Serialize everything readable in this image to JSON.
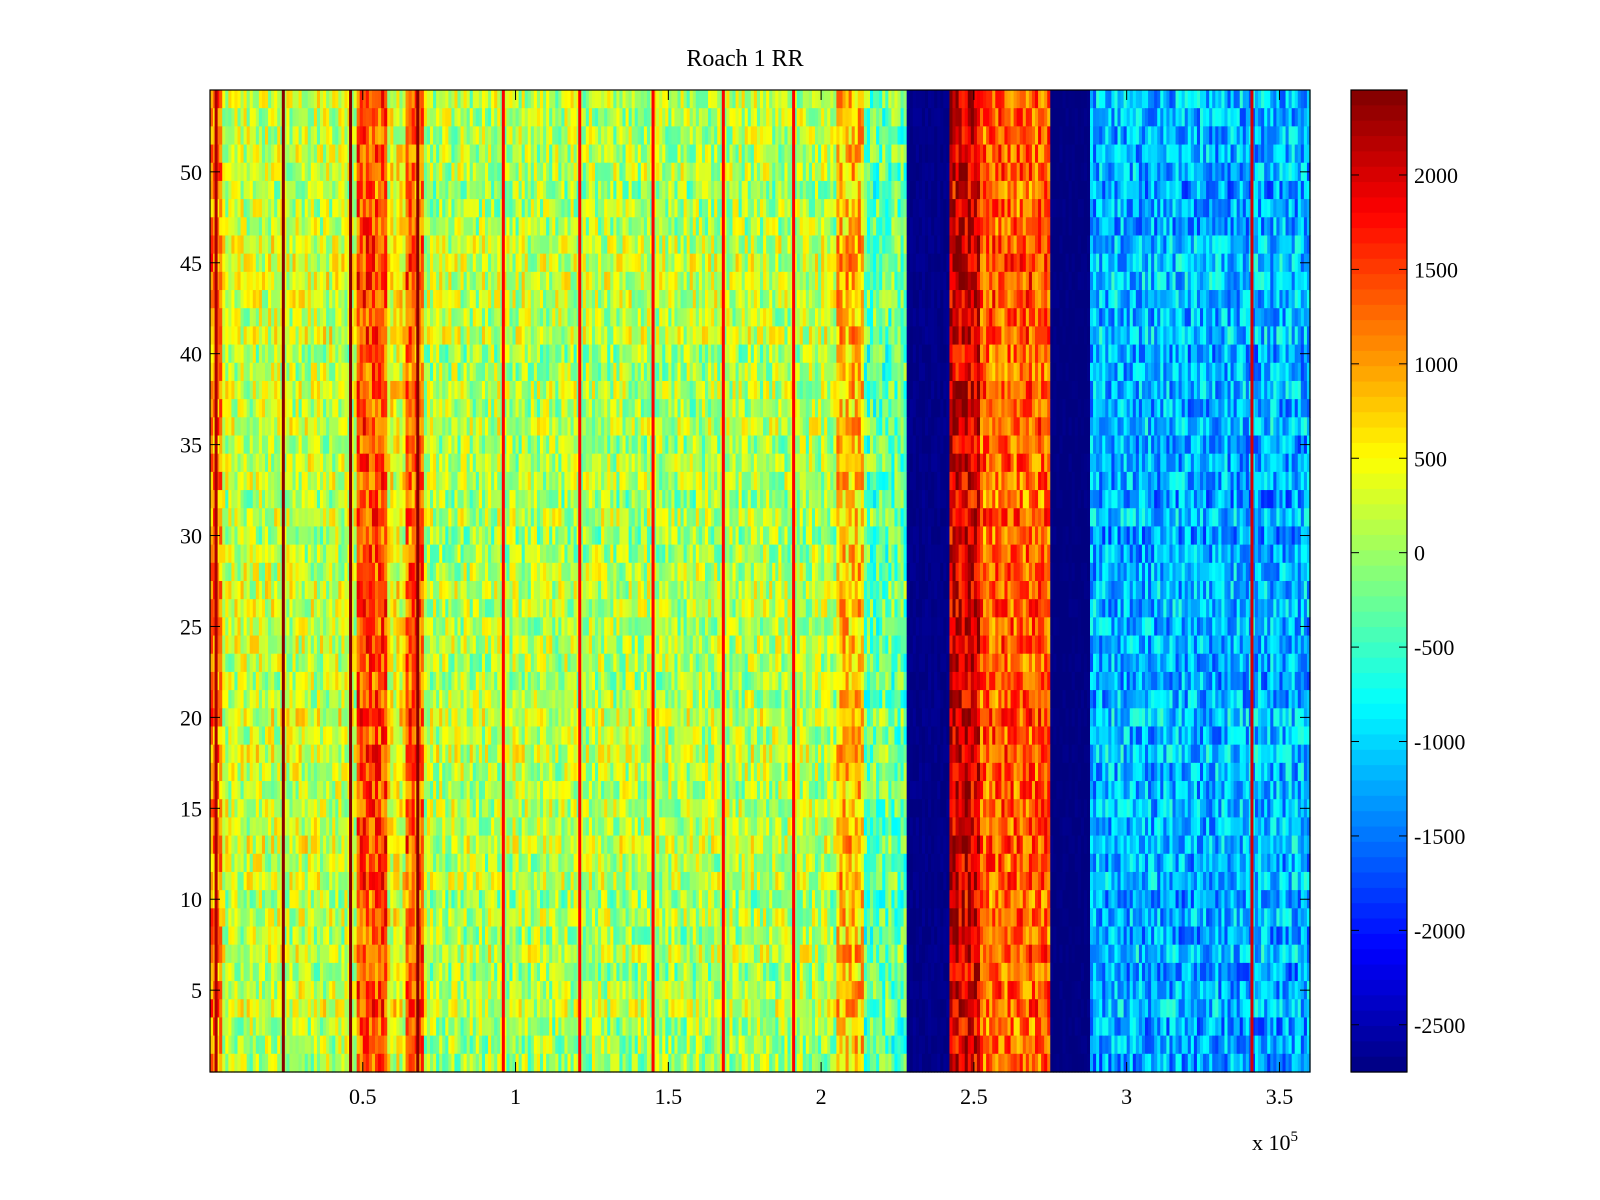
{
  "chart_data": {
    "type": "heatmap",
    "title": "Roach 1 RR",
    "xlabel": "",
    "ylabel": "",
    "xlim": [
      0,
      360000
    ],
    "ylim": [
      0.5,
      54.5
    ],
    "x_exponent_label": "x 10",
    "x_exponent_sup": "5",
    "x_ticks": [
      {
        "value": 50000,
        "label": "0.5"
      },
      {
        "value": 100000,
        "label": "1"
      },
      {
        "value": 150000,
        "label": "1.5"
      },
      {
        "value": 200000,
        "label": "2"
      },
      {
        "value": 250000,
        "label": "2.5"
      },
      {
        "value": 300000,
        "label": "3"
      },
      {
        "value": 350000,
        "label": "3.5"
      }
    ],
    "y_ticks": [
      {
        "value": 5,
        "label": "5"
      },
      {
        "value": 10,
        "label": "10"
      },
      {
        "value": 15,
        "label": "15"
      },
      {
        "value": 20,
        "label": "20"
      },
      {
        "value": 25,
        "label": "25"
      },
      {
        "value": 30,
        "label": "30"
      },
      {
        "value": 35,
        "label": "35"
      },
      {
        "value": 40,
        "label": "40"
      },
      {
        "value": 45,
        "label": "45"
      },
      {
        "value": 50,
        "label": "50"
      }
    ],
    "colorbar": {
      "colormap": "jet",
      "range": [
        -2750,
        2450
      ],
      "ticks": [
        {
          "value": 2000,
          "label": "2000"
        },
        {
          "value": 1500,
          "label": "1500"
        },
        {
          "value": 1000,
          "label": "1000"
        },
        {
          "value": 500,
          "label": "500"
        },
        {
          "value": 0,
          "label": "0"
        },
        {
          "value": -500,
          "label": "-500"
        },
        {
          "value": -1000,
          "label": "-1000"
        },
        {
          "value": -1500,
          "label": "-1500"
        },
        {
          "value": -2000,
          "label": "-2000"
        },
        {
          "value": -2500,
          "label": "-2500"
        }
      ]
    },
    "rows": 54,
    "bands": [
      {
        "x0": 0,
        "x1": 4000,
        "value": 1100
      },
      {
        "x0": 4000,
        "x1": 48000,
        "value": 200
      },
      {
        "x0": 48000,
        "x1": 58000,
        "value": 1400
      },
      {
        "x0": 58000,
        "x1": 64000,
        "value": 400
      },
      {
        "x0": 64000,
        "x1": 70000,
        "value": 1300
      },
      {
        "x0": 70000,
        "x1": 205000,
        "value": 100
      },
      {
        "x0": 205000,
        "x1": 214000,
        "value": 800
      },
      {
        "x0": 214000,
        "x1": 228000,
        "value": -300
      },
      {
        "x0": 228000,
        "x1": 242000,
        "value": -2700
      },
      {
        "x0": 242000,
        "x1": 252000,
        "value": 2000
      },
      {
        "x0": 252000,
        "x1": 275000,
        "value": 1300
      },
      {
        "x0": 275000,
        "x1": 288000,
        "value": -2750
      },
      {
        "x0": 288000,
        "x1": 360000,
        "value": -1200
      }
    ],
    "stripes": [
      {
        "x": 2000,
        "value": 2200
      },
      {
        "x": 24000,
        "value": 2400
      },
      {
        "x": 46000,
        "value": 2400
      },
      {
        "x": 68000,
        "value": 2400
      },
      {
        "x": 96000,
        "value": 1800
      },
      {
        "x": 121000,
        "value": 1800
      },
      {
        "x": 145000,
        "value": 1800
      },
      {
        "x": 168000,
        "value": 1800
      },
      {
        "x": 191000,
        "value": 1800
      },
      {
        "x": 341000,
        "value": 2000
      }
    ]
  }
}
